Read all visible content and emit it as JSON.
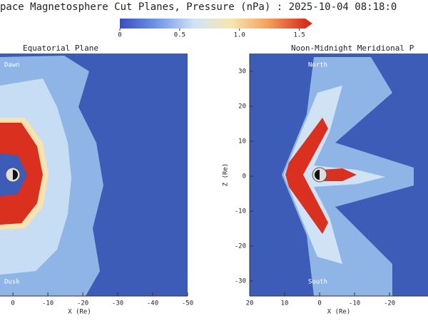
{
  "chart_data": {
    "type": "colormap",
    "title": "pace Magnetosphere Cut Planes, Pressure (nPa) : 2025-10-04 08:18:0",
    "colorbar": {
      "lim": [
        0,
        1.55
      ],
      "ticks": [
        0,
        0.5,
        {
          "value": 1,
          "label": "1.0"
        },
        1.5
      ],
      "colors": [
        "#3b4cc0",
        "#6f96e8",
        "#cfe3f5",
        "#f7e6b0",
        "#f4a05a",
        "#d7301f"
      ]
    },
    "panels": [
      {
        "title": "Equatorial Plane",
        "xlabel": "X (Re)",
        "xlim": [
          3.7,
          -50
        ],
        "xticks": [
          0,
          -10,
          -20,
          -30,
          -40,
          -50
        ],
        "labels": [
          "Dawn",
          "Dusk"
        ]
      },
      {
        "title": "Noon-Midnight Meridional P",
        "xlabel": "X (Re)",
        "ylabel": "Z (Re)",
        "xlim": [
          20,
          -31
        ],
        "xticks": [
          20,
          10,
          0,
          -10,
          -20
        ],
        "ylim": [
          -34.3,
          35.1
        ],
        "yticks": [
          30,
          20,
          10,
          0,
          -10,
          -20,
          -30
        ],
        "labels": [
          "North",
          "South"
        ]
      }
    ]
  }
}
